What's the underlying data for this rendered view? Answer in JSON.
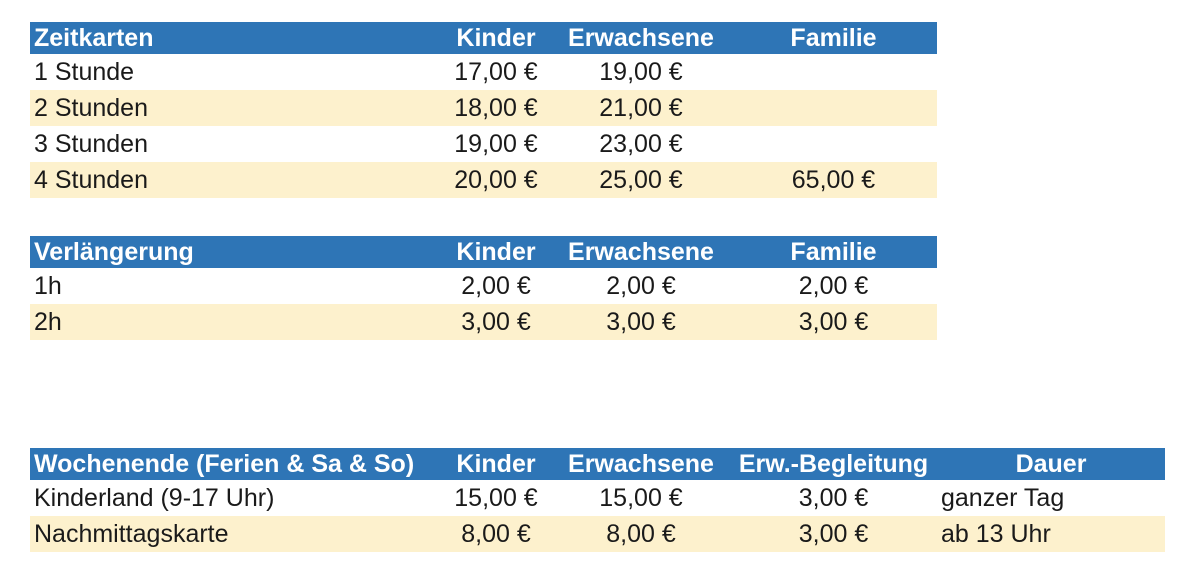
{
  "colors": {
    "header_bg": "#2E75B6",
    "header_text": "#FFFFFF",
    "row_stripe_bg": "#FDF1CD",
    "row_bg": "#FFFFFF",
    "body_text": "#1A1A1A"
  },
  "tables": [
    {
      "name": "Zeitkarten",
      "headers": [
        "Zeitkarten",
        "Kinder",
        "Erwachsene",
        "Familie"
      ],
      "rows": [
        [
          "1 Stunde",
          "17,00 €",
          "19,00 €",
          ""
        ],
        [
          "2 Stunden",
          "18,00 €",
          "21,00 €",
          ""
        ],
        [
          "3 Stunden",
          "19,00 €",
          "23,00 €",
          ""
        ],
        [
          "4 Stunden",
          "20,00 €",
          "25,00 €",
          "65,00 €"
        ]
      ]
    },
    {
      "name": "Verlängerung",
      "headers": [
        "Verlängerung",
        "Kinder",
        "Erwachsene",
        "Familie"
      ],
      "rows": [
        [
          "1h",
          "2,00 €",
          "2,00 €",
          "2,00 €"
        ],
        [
          "2h",
          "3,00 €",
          "3,00 €",
          "3,00 €"
        ]
      ]
    },
    {
      "name": "Wochenende (Ferien & Sa & So)",
      "headers": [
        "Wochenende (Ferien & Sa & So)",
        "Kinder",
        "Erwachsene",
        "Erw.-Begleitung",
        "Dauer"
      ],
      "rows": [
        [
          "Kinderland (9-17 Uhr)",
          "15,00 €",
          "15,00 €",
          "3,00 €",
          "ganzer Tag"
        ],
        [
          "Nachmittagskarte",
          "8,00 €",
          "8,00 €",
          "3,00 €",
          "ab 13 Uhr"
        ]
      ]
    }
  ]
}
